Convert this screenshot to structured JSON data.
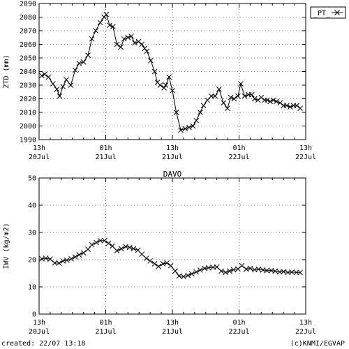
{
  "footer": {
    "created": "created: 22/07 13:18",
    "credit": "(c)KNMI/EGVAP"
  },
  "chart_data": [
    {
      "type": "line",
      "title": "",
      "xlabel": "",
      "ylabel": "ZTD (mm)",
      "ylim": [
        1990,
        2090
      ],
      "yticks": [
        1990,
        2000,
        2010,
        2020,
        2030,
        2040,
        2050,
        2060,
        2070,
        2080,
        2090
      ],
      "xlim": [
        0,
        48
      ],
      "x_unit": "hours since 20Jul 13h",
      "xticks": [
        {
          "x": 0,
          "label1": "13h",
          "label2": "20Jul"
        },
        {
          "x": 12,
          "label1": "01h",
          "label2": "21Jul"
        },
        {
          "x": 24,
          "label1": "13h",
          "label2": "21Jul"
        },
        {
          "x": 36,
          "label1": "01h",
          "label2": "22Jul"
        },
        {
          "x": 48,
          "label1": "13h",
          "label2": "22Jul"
        }
      ],
      "grid": true,
      "legend": {
        "position": "top-right",
        "entries": [
          "_PT_"
        ]
      },
      "series": [
        {
          "name": "_PT_",
          "color": "#000000",
          "marker": "x",
          "x": [
            0.5,
            1.0,
            1.7,
            2.5,
            3.2,
            3.7,
            4.3,
            4.9,
            5.7,
            6.5,
            7.2,
            8.0,
            8.8,
            9.5,
            10.2,
            11.0,
            11.7,
            12.1,
            12.7,
            13.3,
            14.0,
            14.7,
            15.3,
            16.0,
            16.6,
            17.2,
            17.9,
            18.5,
            19.0,
            19.4,
            20.1,
            20.8,
            21.3,
            21.8,
            22.5,
            22.8,
            23.4,
            24.0,
            24.7,
            25.5,
            26.3,
            27.0,
            27.7,
            28.3,
            29.0,
            29.6,
            30.3,
            31.0,
            31.7,
            32.4,
            33.2,
            33.9,
            34.5,
            35.1,
            35.8,
            36.3,
            37.0,
            37.7,
            38.3,
            38.8,
            39.4,
            40.0,
            40.6,
            41.1,
            41.6,
            42.2,
            42.7,
            43.4,
            44.0,
            44.6,
            45.2,
            45.8,
            46.4,
            47.0
          ],
          "y": [
            2037,
            2038,
            2036,
            2031,
            2027,
            2022,
            2029,
            2034,
            2030,
            2041,
            2046,
            2047,
            2052,
            2064,
            2070,
            2076,
            2080,
            2082,
            2074,
            2073,
            2060,
            2058,
            2064,
            2065,
            2066,
            2061,
            2062,
            2060,
            2057,
            2055,
            2048,
            2040,
            2032,
            2030,
            2028,
            2030,
            2036,
            2026,
            2010,
            1997,
            1998,
            1999,
            2000,
            2004,
            2010,
            2015,
            2019,
            2022,
            2022,
            2027,
            2017,
            2013,
            2021,
            2020,
            2022,
            2031,
            2022,
            2023,
            2023,
            2020,
            2019,
            2021,
            2019,
            2019,
            2018,
            2019,
            2018,
            2017,
            2015,
            2015,
            2014,
            2015,
            2015,
            2013
          ]
        }
      ]
    },
    {
      "type": "line",
      "title": "DAVO",
      "xlabel": "",
      "ylabel": "IWV (kg/m2)",
      "ylim": [
        0,
        50
      ],
      "yticks": [
        0,
        10,
        20,
        30,
        40,
        50
      ],
      "xlim": [
        0,
        48
      ],
      "x_unit": "hours since 20Jul 13h",
      "xticks": [
        {
          "x": 0,
          "label1": "13h",
          "label2": "20Jul"
        },
        {
          "x": 12,
          "label1": "01h",
          "label2": "21Jul"
        },
        {
          "x": 24,
          "label1": "13h",
          "label2": "21Jul"
        },
        {
          "x": 36,
          "label1": "01h",
          "label2": "22Jul"
        },
        {
          "x": 48,
          "label1": "13h",
          "label2": "22Jul"
        }
      ],
      "grid": true,
      "series": [
        {
          "name": "",
          "color": "#000000",
          "marker": "x",
          "x": [
            0.5,
            1.2,
            2.0,
            2.8,
            3.6,
            4.3,
            5.0,
            5.8,
            6.5,
            7.2,
            8.0,
            8.8,
            9.5,
            10.3,
            11.0,
            11.8,
            12.5,
            13.2,
            14.0,
            14.8,
            15.6,
            16.3,
            17.0,
            17.8,
            18.5,
            19.3,
            20.0,
            20.8,
            21.5,
            22.3,
            23.0,
            23.7,
            24.5,
            25.2,
            26.0,
            26.8,
            27.5,
            28.3,
            29.0,
            29.8,
            30.5,
            31.3,
            32.0,
            32.8,
            33.6,
            34.3,
            35.0,
            35.8,
            36.5,
            37.3,
            38.0,
            38.8,
            39.5,
            40.3,
            41.0,
            41.8,
            42.5,
            43.3,
            44.0,
            44.8,
            45.5,
            46.3,
            47.0
          ],
          "y": [
            20.3,
            20.5,
            20.2,
            18.8,
            18.7,
            19.5,
            19.8,
            20.3,
            21.0,
            21.8,
            22.5,
            23.8,
            25.5,
            26.3,
            27.0,
            27.0,
            26.0,
            25.0,
            23.3,
            24.0,
            24.8,
            24.5,
            24.0,
            23.5,
            22.0,
            20.5,
            19.5,
            18.5,
            17.5,
            18.5,
            18.8,
            17.8,
            15.8,
            14.0,
            13.8,
            14.2,
            14.8,
            15.5,
            16.2,
            16.8,
            17.0,
            17.2,
            17.3,
            15.8,
            15.3,
            15.8,
            16.3,
            16.6,
            17.8,
            16.5,
            16.8,
            16.3,
            16.5,
            16.2,
            16.0,
            16.0,
            15.8,
            15.5,
            15.6,
            15.3,
            15.4,
            15.3,
            15.3
          ]
        }
      ]
    }
  ]
}
